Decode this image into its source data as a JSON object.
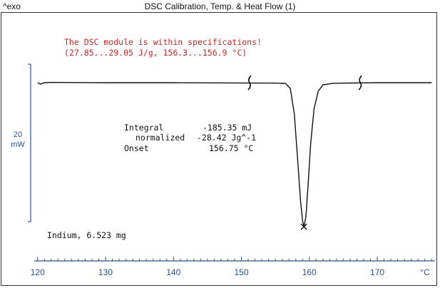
{
  "header": {
    "exo_label": "^exo",
    "title": "DSC Calibration, Temp. & Heat Flow (1)"
  },
  "chart_data": {
    "type": "line",
    "title": "DSC Calibration, Temp. & Heat Flow (1)",
    "xlabel": "°C",
    "xlim": [
      119.5,
      178.5
    ],
    "ticks": [
      120,
      130,
      140,
      150,
      160,
      170
    ],
    "tick_labels": [
      "120",
      "130",
      "140",
      "150",
      "160",
      "170"
    ],
    "scale_bar": {
      "value": "20",
      "unit": "mW"
    },
    "status_line1": "The DSC module is within specifications!",
    "status_line2": "(27.85...29.05 J/g, 156.3...156.9 °C)",
    "integral_label": "Integral",
    "integral_value": "-185.35 mJ",
    "normalized_label": "normalized",
    "normalized_value": "-28.42 Jg^-1",
    "onset_label": "Onset",
    "onset_value": "156.75 °C",
    "sample_label": "Indium, 6.523 mg",
    "integration_limits": [
      151.2,
      167.5
    ],
    "peak": {
      "x": 159.2,
      "relative_depth": 1.0
    },
    "series": [
      {
        "x": [
          120.0,
          120.4,
          121.0,
          122.0,
          130.0,
          140.0,
          150.0,
          155.0,
          156.5,
          157.2,
          157.8,
          158.3,
          158.7,
          159.0,
          159.2,
          159.5,
          159.8,
          160.2,
          160.7,
          161.3,
          162.0,
          163.5,
          170.0,
          178.0
        ],
        "y": [
          0.0,
          0.01,
          0.0,
          -0.002,
          0.0,
          0.0,
          0.002,
          0.003,
          0.005,
          0.04,
          0.22,
          0.55,
          0.82,
          0.96,
          1.0,
          0.93,
          0.72,
          0.42,
          0.18,
          0.06,
          0.015,
          0.004,
          0.0,
          0.0
        ]
      }
    ],
    "colors": {
      "curve": "#111111",
      "axis": "#2a4fa6",
      "status": "#e02020"
    }
  }
}
